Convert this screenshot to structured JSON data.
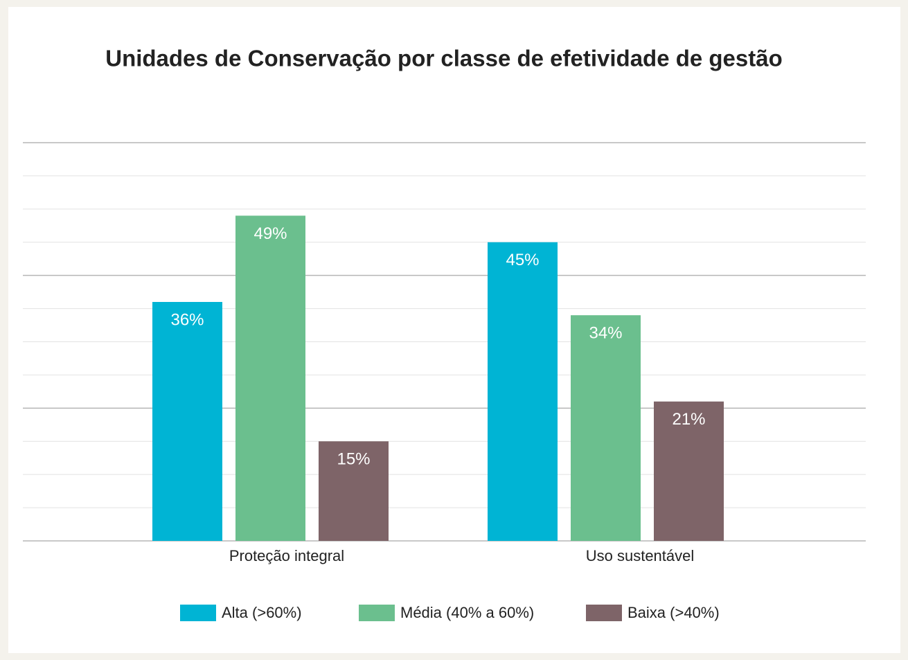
{
  "chart_data": {
    "type": "bar",
    "title": "Unidades de Conservação por classe de efetividade de gestão",
    "categories": [
      "Proteção integral",
      "Uso sustentável"
    ],
    "series": [
      {
        "name": "Alta (>60%)",
        "color": "#00b4d4",
        "values": [
          36,
          45
        ],
        "value_labels": [
          "36%",
          "45%"
        ]
      },
      {
        "name": "Média (40% a 60%)",
        "color": "#6bbf8e",
        "values": [
          49,
          34
        ],
        "value_labels": [
          "49%",
          "34%"
        ]
      },
      {
        "name": "Baixa (>40%)",
        "color": "#7e6468",
        "values": [
          15,
          21
        ],
        "value_labels": [
          "15%",
          "21%"
        ]
      }
    ],
    "ylim": [
      0,
      60
    ],
    "yticks": [
      0,
      5,
      10,
      15,
      20,
      25,
      30,
      35,
      40,
      45,
      50,
      55,
      60
    ],
    "grid": true,
    "legend": "bottom"
  }
}
